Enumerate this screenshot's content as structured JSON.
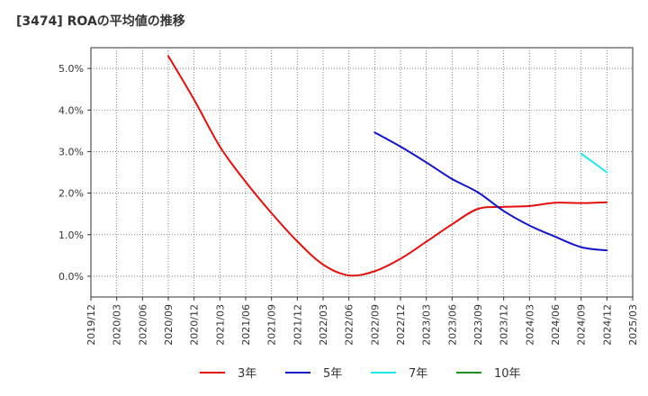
{
  "chart_data": {
    "type": "line",
    "title": "[3474]  ROAの平均値の推移",
    "xlabel": "",
    "ylabel": "",
    "ylim": [
      -0.5,
      5.5
    ],
    "yticks": [
      0.0,
      1.0,
      2.0,
      3.0,
      4.0,
      5.0
    ],
    "ytick_labels": [
      "0.0%",
      "1.0%",
      "2.0%",
      "3.0%",
      "4.0%",
      "5.0%"
    ],
    "x_categories": [
      "2019/12",
      "2020/03",
      "2020/06",
      "2020/09",
      "2020/12",
      "2021/03",
      "2021/06",
      "2021/09",
      "2021/12",
      "2022/03",
      "2022/06",
      "2022/09",
      "2022/12",
      "2023/03",
      "2023/06",
      "2023/09",
      "2023/12",
      "2024/03",
      "2024/06",
      "2024/09",
      "2024/12",
      "2025/03"
    ],
    "grid": true,
    "legend_position": "bottom",
    "series": [
      {
        "name": "3年",
        "color": "#e01010",
        "x": [
          "2020/09",
          "2020/12",
          "2021/03",
          "2021/06",
          "2021/09",
          "2021/12",
          "2022/03",
          "2022/06",
          "2022/09",
          "2022/12",
          "2023/03",
          "2023/06",
          "2023/09",
          "2023/12",
          "2024/03",
          "2024/06",
          "2024/09",
          "2024/12"
        ],
        "values": [
          5.3,
          4.25,
          3.12,
          2.27,
          1.52,
          0.84,
          0.28,
          0.02,
          0.12,
          0.42,
          0.83,
          1.25,
          1.62,
          1.67,
          1.69,
          1.77,
          1.76,
          1.78
        ]
      },
      {
        "name": "5年",
        "color": "#1414c8",
        "x": [
          "2022/09",
          "2022/12",
          "2023/03",
          "2023/06",
          "2023/09",
          "2023/12",
          "2024/03",
          "2024/06",
          "2024/09",
          "2024/12"
        ],
        "values": [
          3.46,
          3.12,
          2.74,
          2.34,
          2.02,
          1.57,
          1.22,
          0.95,
          0.7,
          0.62
        ]
      },
      {
        "name": "7年",
        "color": "#20e8e8",
        "x": [
          "2024/09",
          "2024/12"
        ],
        "values": [
          2.95,
          2.5
        ]
      },
      {
        "name": "10年",
        "color": "#209020",
        "x": [],
        "values": []
      }
    ]
  }
}
